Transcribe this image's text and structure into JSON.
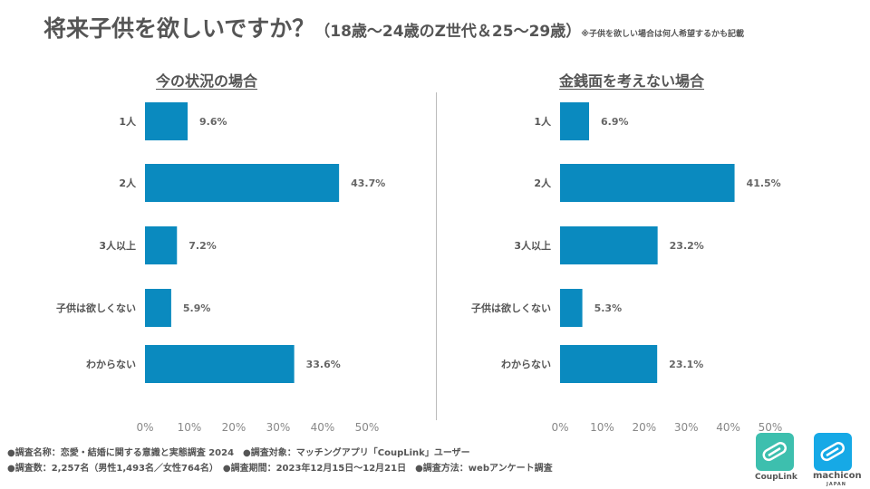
{
  "header": {
    "title": "将来子供を欲しいですか？",
    "subtitle": "（18歳〜24歳のZ世代＆25〜29歳）",
    "note": "※子供を欲しい場合は何人希望するかも記載"
  },
  "colors": {
    "bar": "#0a8abf",
    "accent_coup": "#3dbfae",
    "accent_machicon": "#16a9e6"
  },
  "chart_data": [
    {
      "type": "bar",
      "orientation": "horizontal",
      "title": "今の状況の場合",
      "categories": [
        "1人",
        "2人",
        "3人以上",
        "子供は欲しくない",
        "わからない"
      ],
      "values": [
        9.6,
        43.7,
        7.2,
        5.9,
        33.6
      ],
      "value_labels": [
        "9.6%",
        "43.7%",
        "7.2%",
        "5.9%",
        "33.6%"
      ],
      "xlim": [
        0,
        50
      ],
      "ticks": [
        0,
        10,
        20,
        30,
        40,
        50
      ],
      "tick_labels": [
        "0%",
        "10%",
        "20%",
        "30%",
        "40%",
        "50%"
      ]
    },
    {
      "type": "bar",
      "orientation": "horizontal",
      "title": "金銭面を考えない場合",
      "categories": [
        "1人",
        "2人",
        "3人以上",
        "子供は欲しくない",
        "わからない"
      ],
      "values": [
        6.9,
        41.5,
        23.2,
        5.3,
        23.1
      ],
      "value_labels": [
        "6.9%",
        "41.5%",
        "23.2%",
        "5.3%",
        "23.1%"
      ],
      "xlim": [
        0,
        50
      ],
      "ticks": [
        0,
        10,
        20,
        30,
        40,
        50
      ],
      "tick_labels": [
        "0%",
        "10%",
        "20%",
        "30%",
        "40%",
        "50%"
      ]
    }
  ],
  "footer": {
    "line1": "●調査名称：恋愛・結婚に関する意識と実態調査 2024　●調査対象：マッチングアプリ「CoupLink」ユーザー",
    "line2": "●調査数：2,257名（男性1,493名／女性764名）　●調査期間：2023年12月15日〜12月21日　●調査方法：webアンケート調査"
  },
  "logos": {
    "coup_text": "CoupLink",
    "machicon_text": "machicon",
    "machicon_sub": "JAPAN"
  }
}
